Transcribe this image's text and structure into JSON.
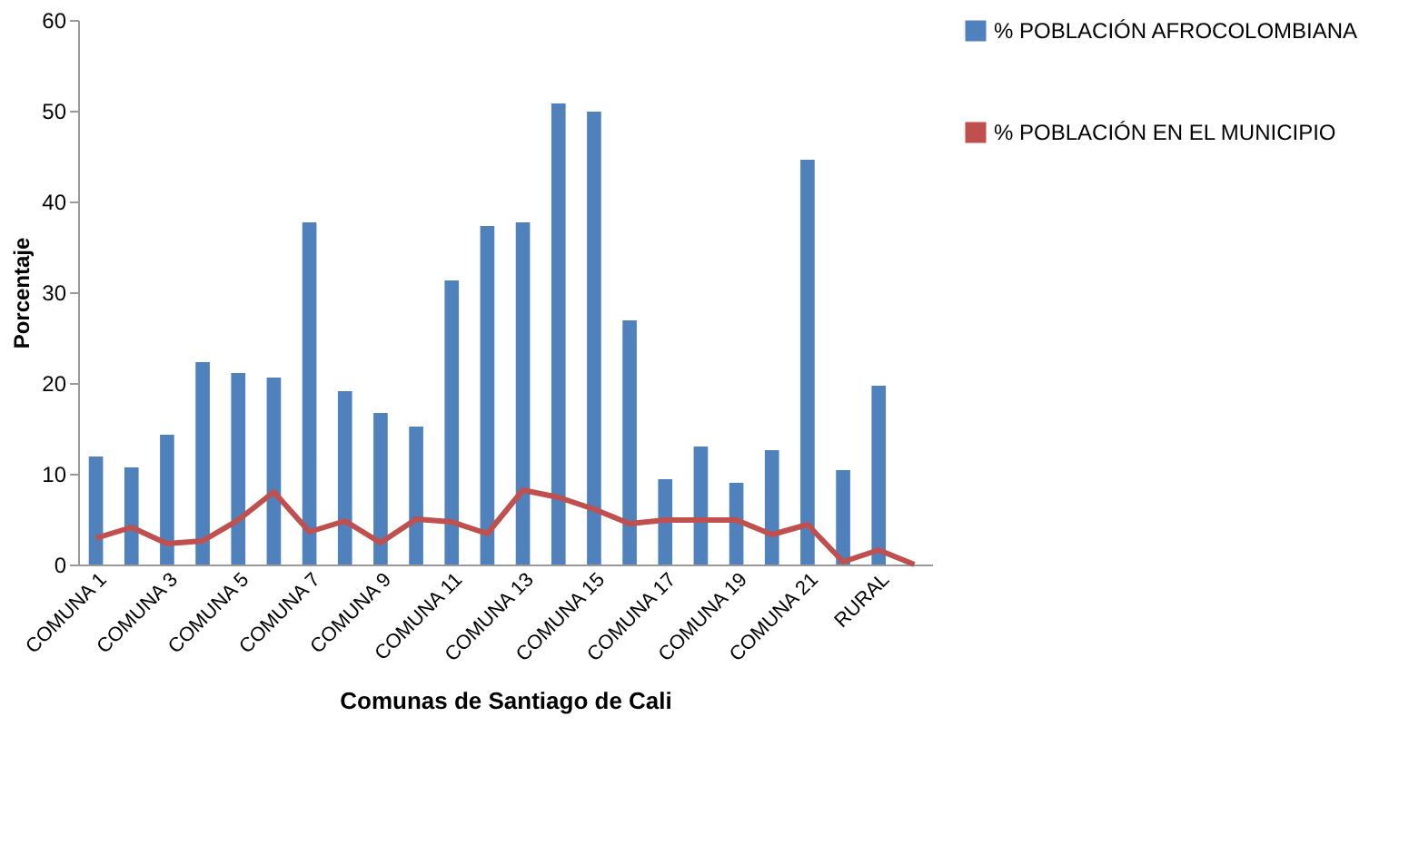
{
  "chart_data": {
    "type": "bar",
    "xlabel": "Comunas de Santiago de Cali",
    "ylabel": "Porcentaje",
    "categories": [
      "COMUNA 1",
      null,
      "COMUNA 3",
      null,
      "COMUNA 5",
      null,
      "COMUNA 7",
      null,
      "COMUNA 9",
      null,
      "COMUNA 11",
      null,
      "COMUNA 13",
      null,
      "COMUNA 15",
      null,
      "COMUNA 17",
      null,
      "COMUNA 19",
      null,
      "COMUNA 21",
      null,
      "RURAL",
      null
    ],
    "series": [
      {
        "name": "% POBLACIÓN AFROCOLOMBIANA",
        "color": "#4f81bd",
        "values": [
          11.9,
          10.7,
          14.3,
          22.3,
          21.1,
          20.6,
          37.7,
          19.1,
          16.7,
          15.2,
          31.3,
          37.3,
          37.7,
          50.8,
          49.9,
          26.9,
          9.4,
          13.0,
          9.0,
          12.6,
          44.6,
          10.4,
          19.7,
          null
        ]
      },
      {
        "name": "% POBLACIÓN  EN EL MUNICIPIO",
        "type": "line",
        "color": "#c0504d",
        "values": [
          2.9,
          4.1,
          2.3,
          2.6,
          4.9,
          8.0,
          3.6,
          4.8,
          2.4,
          5.0,
          4.7,
          3.4,
          8.2,
          7.4,
          6.1,
          4.5,
          4.9,
          4.9,
          4.9,
          3.3,
          4.4,
          0.3,
          1.6,
          0
        ]
      }
    ],
    "ylim": [
      0,
      60
    ],
    "yticks": [
      0,
      10,
      20,
      30,
      40,
      50,
      60
    ],
    "grid": false,
    "legend": "right"
  }
}
